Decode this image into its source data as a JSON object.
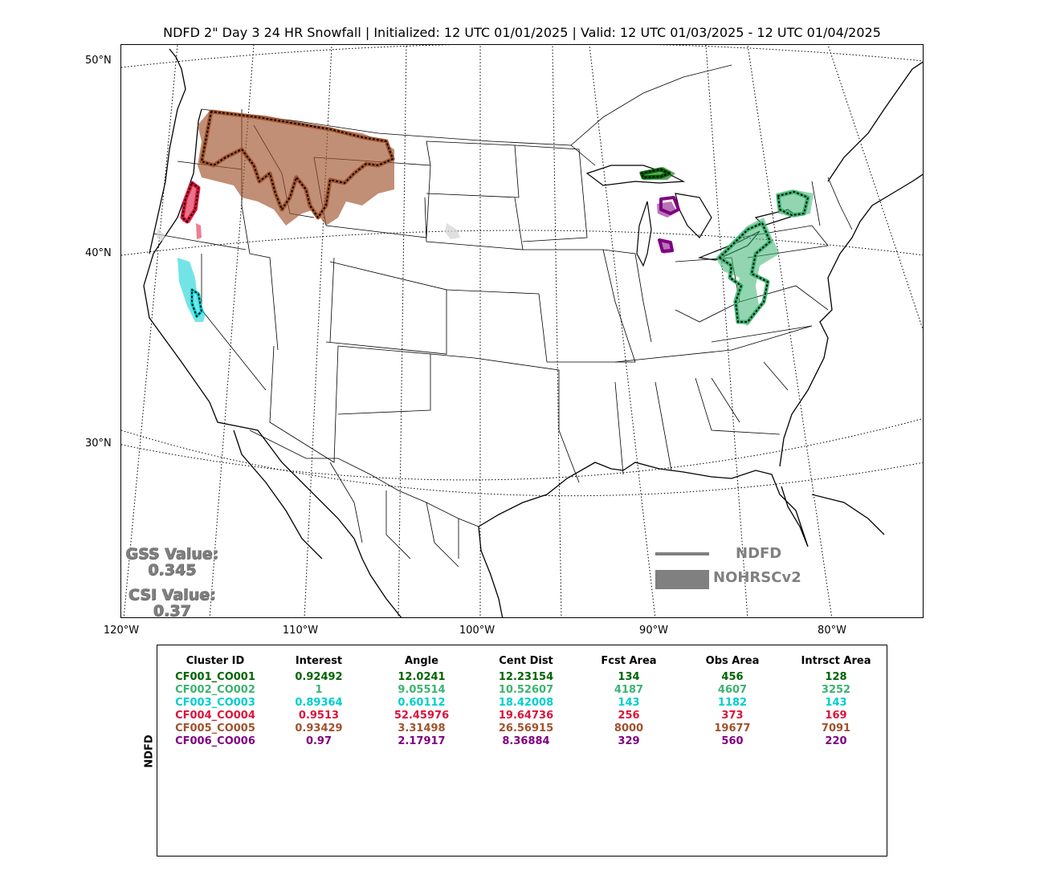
{
  "title": "NDFD 2\" Day 3 24 HR Snowfall | Initialized: 12 UTC 01/01/2025 | Valid: 12 UTC 01/03/2025 - 12 UTC 01/04/2025",
  "lat_labels": [
    "50°N",
    "40°N",
    "30°N"
  ],
  "lon_labels": [
    "120°W",
    "110°W",
    "100°W",
    "90°W",
    "80°W"
  ],
  "scores": {
    "gss_label": "GSS Value:",
    "gss_value": "0.345",
    "csi_label": "CSI Value:",
    "csi_value": "0.37"
  },
  "legend": {
    "forecast_label": "NDFD",
    "observed_label": "NOHRSCv2",
    "color": "#808080"
  },
  "stats": {
    "axis_label": "NDFD",
    "headers": [
      "Cluster ID",
      "Interest",
      "Angle",
      "Cent Dist",
      "Fcst Area",
      "Obs Area",
      "Intrsct Area"
    ],
    "rows": [
      {
        "color": "#006400",
        "cells": [
          "CF001_CO001",
          "0.92492",
          "12.0241",
          "12.23154",
          "134",
          "456",
          "128"
        ]
      },
      {
        "color": "#3cb371",
        "cells": [
          "CF002_CO002",
          "1",
          "9.05514",
          "10.52607",
          "4187",
          "4607",
          "3252"
        ]
      },
      {
        "color": "#00ced1",
        "cells": [
          "CF003_CO003",
          "0.89364",
          "0.60112",
          "18.42008",
          "143",
          "1182",
          "143"
        ]
      },
      {
        "color": "#dc143c",
        "cells": [
          "CF004_CO004",
          "0.9513",
          "52.45976",
          "19.64736",
          "256",
          "373",
          "169"
        ]
      },
      {
        "color": "#a0522d",
        "cells": [
          "CF005_CO005",
          "0.93429",
          "3.31498",
          "26.56915",
          "8000",
          "19677",
          "7091"
        ]
      },
      {
        "color": "#800080",
        "cells": [
          "CF006_CO006",
          "0.97",
          "2.17917",
          "8.36884",
          "329",
          "560",
          "220"
        ]
      }
    ]
  }
}
